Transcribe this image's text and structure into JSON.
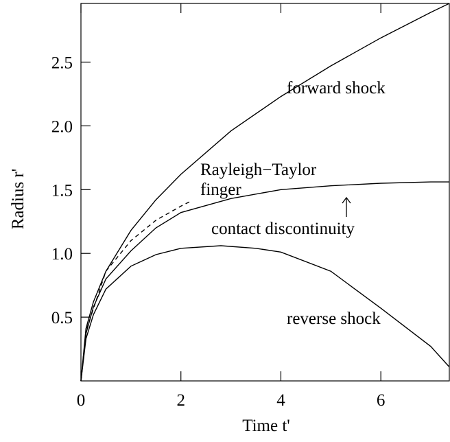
{
  "chart_data": {
    "type": "line",
    "xlabel": "Time t'",
    "ylabel": "Radius r'",
    "xlim": [
      0,
      7.37
    ],
    "xticks": [
      0,
      2,
      4,
      6
    ],
    "ylim": [
      0,
      2.96
    ],
    "yticks": [
      0.5,
      {
        "value": 1,
        "label": "1.0"
      },
      1.5,
      {
        "value": 2,
        "label": "2.0"
      },
      2.5
    ],
    "color": "#000000",
    "series": [
      {
        "name": "forward shock",
        "x": [
          0,
          0.1,
          0.25,
          0.5,
          1,
          1.5,
          2,
          3,
          4,
          5,
          6,
          7,
          7.37
        ],
        "values": [
          0,
          0.41,
          0.62,
          0.86,
          1.18,
          1.42,
          1.62,
          1.96,
          2.23,
          2.47,
          2.69,
          2.89,
          2.96
        ],
        "dashed": false
      },
      {
        "name": "contact discontinuity",
        "x": [
          0,
          0.1,
          0.25,
          0.5,
          1,
          1.5,
          2,
          3,
          4,
          5,
          6,
          7,
          7.37
        ],
        "values": [
          0,
          0.37,
          0.58,
          0.8,
          1.02,
          1.2,
          1.32,
          1.43,
          1.5,
          1.53,
          1.55,
          1.56,
          1.56
        ],
        "dashed": false
      },
      {
        "name": "reverse shock",
        "x": [
          0,
          0.1,
          0.25,
          0.5,
          1,
          1.5,
          2,
          2.8,
          3.5,
          4,
          5,
          6,
          7,
          7.37
        ],
        "values": [
          0,
          0.33,
          0.52,
          0.72,
          0.9,
          0.99,
          1.04,
          1.06,
          1.04,
          1.01,
          0.86,
          0.57,
          0.27,
          0.11
        ],
        "dashed": false
      },
      {
        "name": "Rayleigh−Taylor finger",
        "x": [
          0,
          0.1,
          0.5,
          1,
          1.5,
          2,
          2.2
        ],
        "values": [
          0,
          0.39,
          0.86,
          1.1,
          1.26,
          1.37,
          1.41
        ],
        "dashed": true
      }
    ],
    "annotations": [
      "forward shock",
      "Rayleigh−Taylor",
      "finger",
      "contact discontinuity",
      "reverse shock"
    ]
  }
}
